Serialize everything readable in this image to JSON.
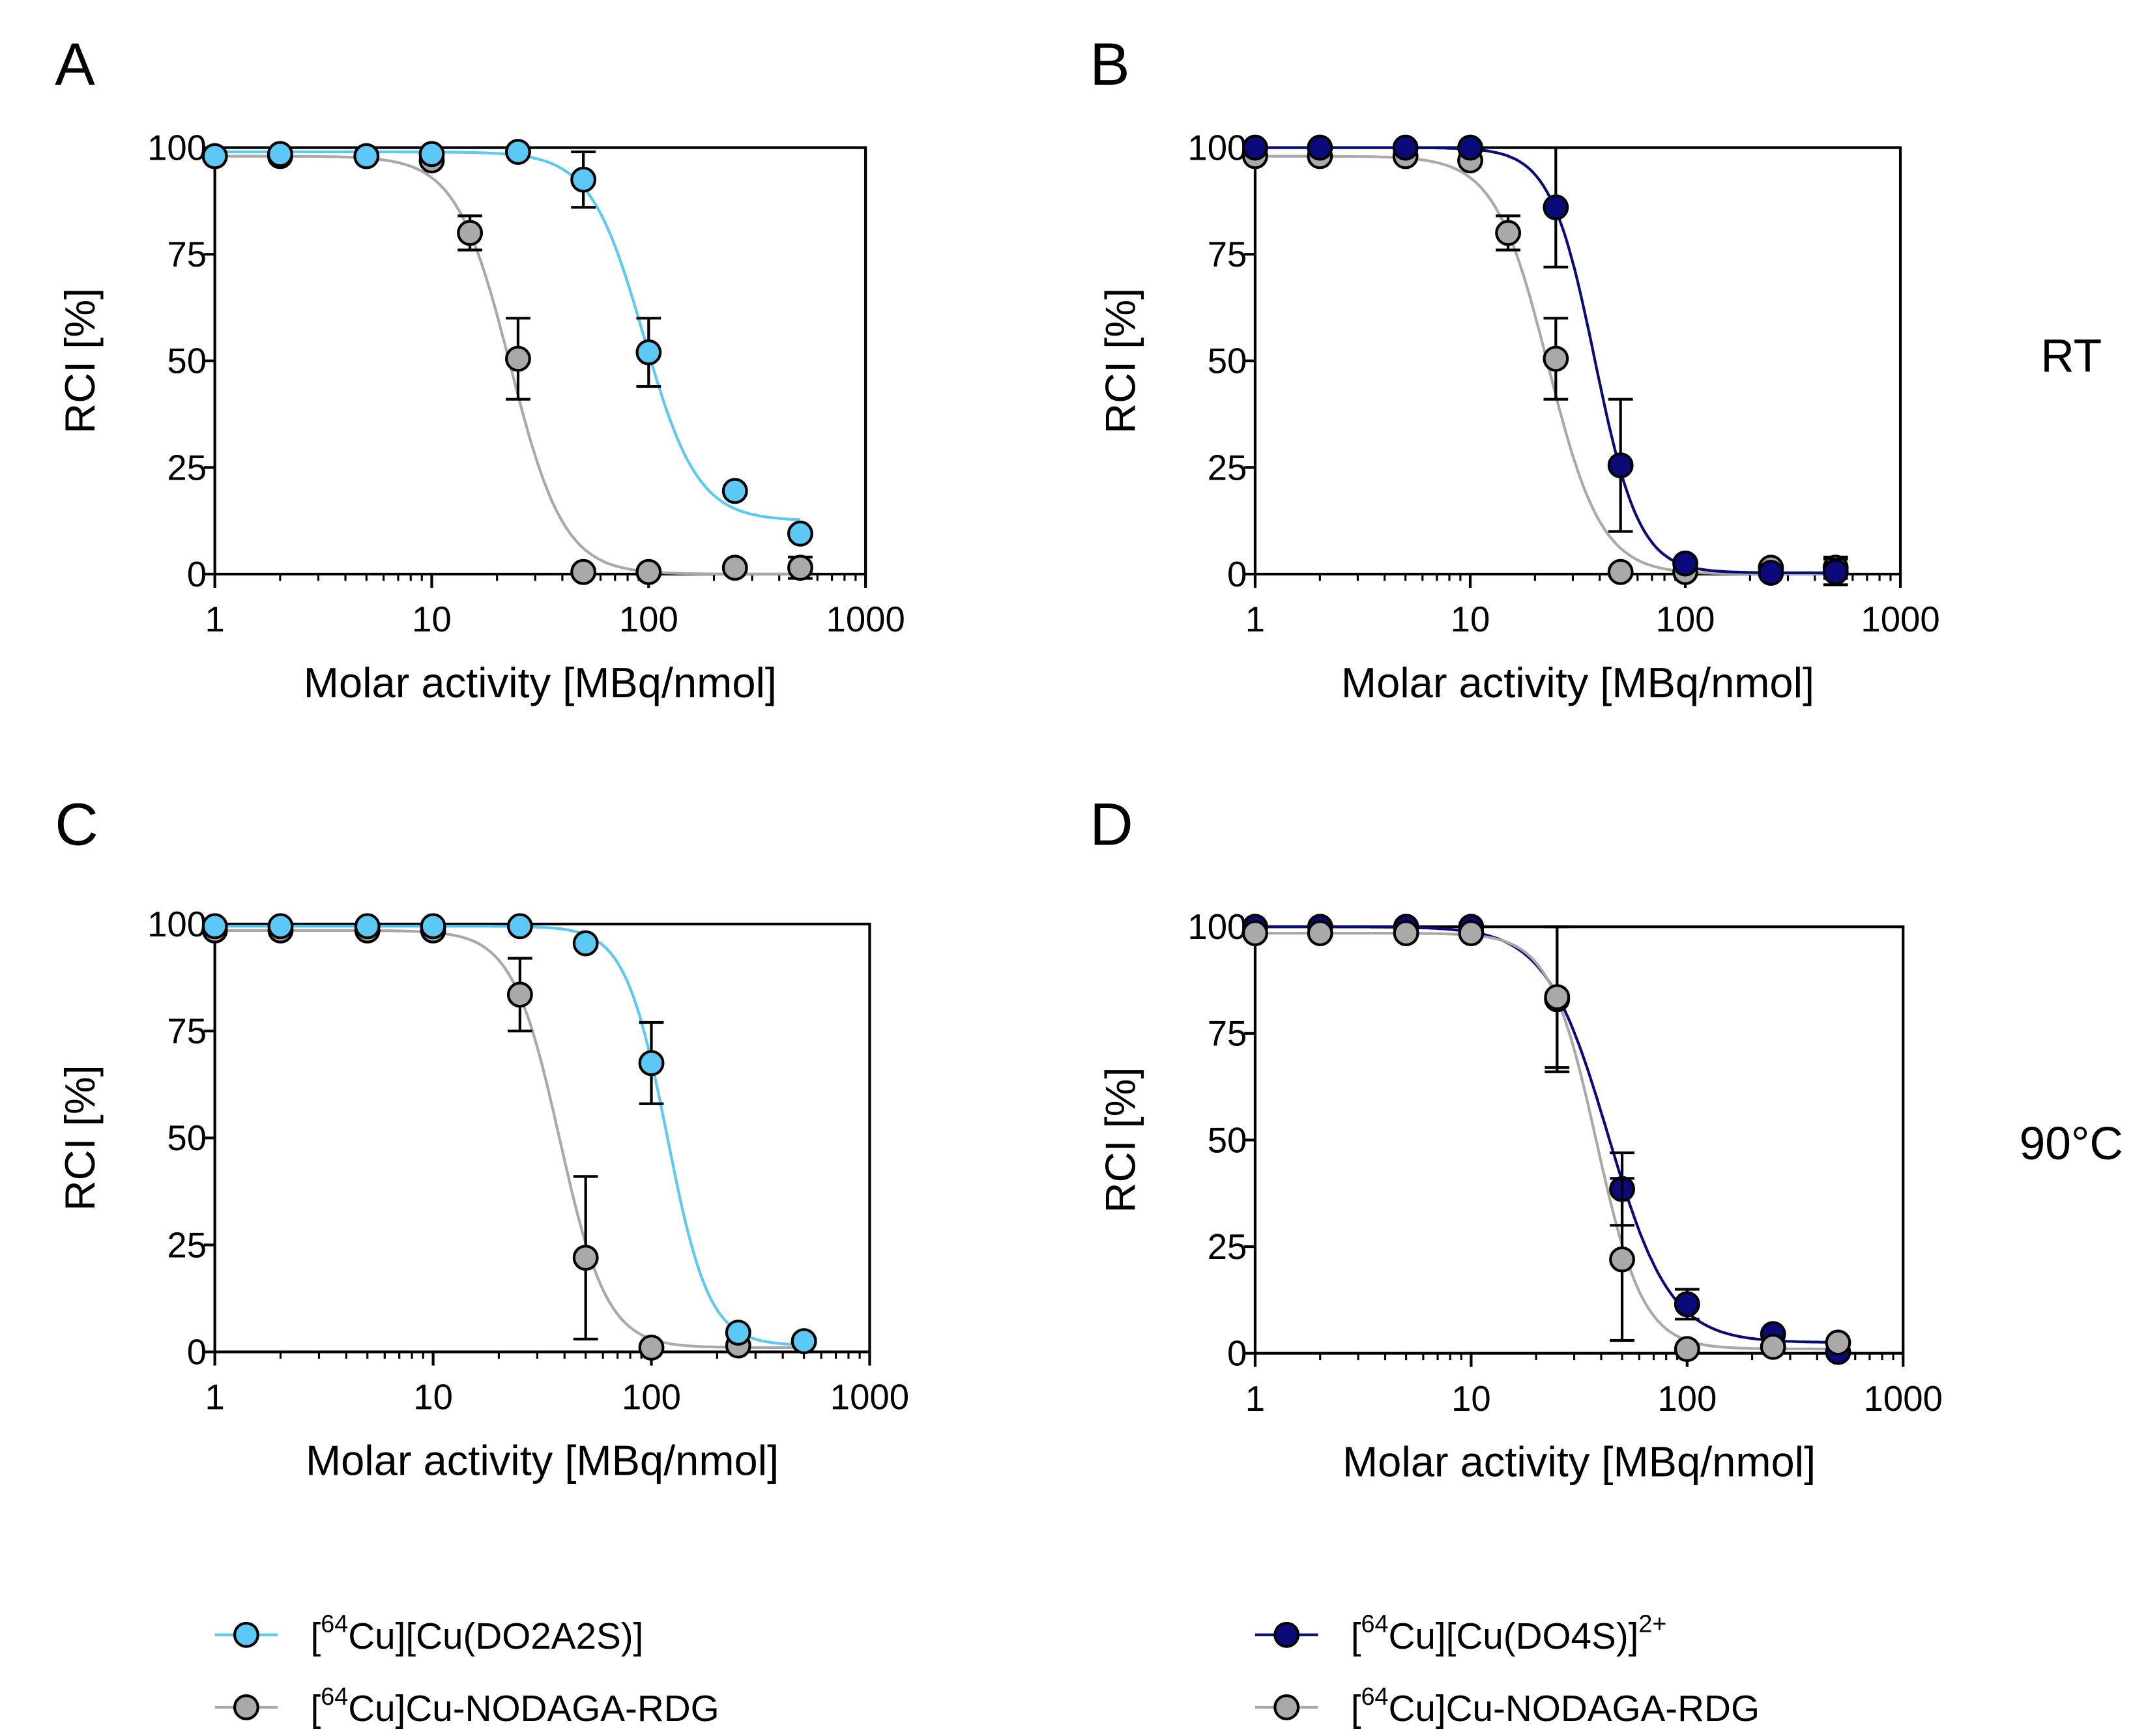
{
  "chart_data": [
    {
      "panel": "A",
      "type": "scatter",
      "xscale": "log",
      "xlim": [
        1,
        1000
      ],
      "ylim": [
        0,
        100
      ],
      "xlabel": "Molar activity [MBq/nmol]",
      "ylabel": "RCI [%]",
      "xticks": [
        "1",
        "10",
        "100",
        "1000"
      ],
      "xtick_values": [
        1,
        10,
        100,
        1000
      ],
      "yticks": [
        "0",
        "25",
        "50",
        "75",
        "100"
      ],
      "ytick_values": [
        0,
        25,
        50,
        75,
        100
      ],
      "condition": "",
      "series": [
        {
          "name": "[64Cu]Cu-NODAGA-RDG",
          "color": "#a9a9a9",
          "x": [
            1,
            2,
            5,
            10,
            15,
            25,
            50,
            100,
            250,
            500
          ],
          "y": [
            98,
            98,
            98,
            97,
            80,
            50.5,
            0.5,
            0.5,
            1.5,
            1.5
          ],
          "err": [
            null,
            null,
            null,
            null,
            4,
            9.5,
            null,
            null,
            null,
            2.5
          ],
          "fit": {
            "top": 98,
            "bottom": 0,
            "ic50": 23,
            "hill": 3.5
          }
        },
        {
          "name": "[64Cu][Cu(DO2A2S)]",
          "color": "#5bc8f5",
          "x": [
            1,
            2,
            5,
            10,
            25,
            50,
            100,
            250,
            500
          ],
          "y": [
            98,
            98.5,
            98,
            98.5,
            99,
            92.5,
            52,
            19.5,
            9.5
          ],
          "err": [
            null,
            null,
            null,
            null,
            null,
            6.5,
            8,
            null,
            null
          ],
          "fit": {
            "top": 99,
            "bottom": 12.5,
            "ic50": 95,
            "hill": 3.5
          }
        }
      ]
    },
    {
      "panel": "B",
      "type": "scatter",
      "xscale": "log",
      "xlim": [
        1,
        1000
      ],
      "ylim": [
        0,
        100
      ],
      "xlabel": "Molar activity [MBq/nmol]",
      "ylabel": "RCI [%]",
      "xticks": [
        "1",
        "10",
        "100",
        "1000"
      ],
      "xtick_values": [
        1,
        10,
        100,
        1000
      ],
      "yticks": [
        "0",
        "25",
        "50",
        "75",
        "100"
      ],
      "ytick_values": [
        0,
        25,
        50,
        75,
        100
      ],
      "condition": "RT",
      "series": [
        {
          "name": "[64Cu]Cu-NODAGA-RDG",
          "color": "#a9a9a9",
          "x": [
            1,
            2,
            5,
            10,
            15,
            25,
            50,
            100,
            250,
            500
          ],
          "y": [
            98,
            98,
            98,
            97,
            80,
            50.5,
            0.5,
            0.5,
            1.5,
            1.5
          ],
          "err": [
            null,
            null,
            null,
            null,
            4,
            9.5,
            null,
            null,
            null,
            2.5
          ],
          "fit": {
            "top": 98,
            "bottom": 0,
            "ic50": 23,
            "hill": 3.5
          }
        },
        {
          "name": "[64Cu][Cu(DO4S)]2+",
          "color": "#0a0a7a",
          "x": [
            1,
            2,
            5,
            10,
            25,
            50,
            100,
            250,
            500
          ],
          "y": [
            100,
            100,
            100,
            100,
            86,
            25.5,
            2.5,
            0.3,
            0.5
          ],
          "err": [
            null,
            null,
            null,
            null,
            14,
            15.5,
            null,
            null,
            3
          ],
          "fit": {
            "top": 100,
            "bottom": 0.3,
            "ic50": 38,
            "hill": 4.2
          }
        }
      ]
    },
    {
      "panel": "C",
      "type": "scatter",
      "xscale": "log",
      "xlim": [
        1,
        1000
      ],
      "ylim": [
        0,
        100
      ],
      "xlabel": "Molar activity [MBq/nmol]",
      "ylabel": "RCI [%]",
      "xticks": [
        "1",
        "10",
        "100",
        "1000"
      ],
      "xtick_values": [
        1,
        10,
        100,
        1000
      ],
      "yticks": [
        "0",
        "25",
        "50",
        "75",
        "100"
      ],
      "ytick_values": [
        0,
        25,
        50,
        75,
        100
      ],
      "condition": "",
      "series": [
        {
          "name": "[64Cu]Cu-NODAGA-RDG",
          "color": "#a9a9a9",
          "x": [
            1,
            2,
            5,
            10,
            25,
            50,
            100,
            250,
            500
          ],
          "y": [
            98.5,
            98.5,
            98.5,
            98.5,
            83.5,
            22,
            1,
            1.5,
            2.5
          ],
          "err": [
            null,
            null,
            null,
            null,
            8.5,
            19,
            null,
            null,
            null
          ],
          "fit": {
            "top": 98.5,
            "bottom": 1,
            "ic50": 38,
            "hill": 4
          }
        },
        {
          "name": "[64Cu][Cu(DO2A2S)]",
          "color": "#5bc8f5",
          "x": [
            1,
            2,
            5,
            10,
            25,
            50,
            100,
            250,
            500
          ],
          "y": [
            99.5,
            99.5,
            99.5,
            99.5,
            99.5,
            95.5,
            67.5,
            4.5,
            2.5
          ],
          "err": [
            null,
            null,
            null,
            null,
            null,
            null,
            9.5,
            null,
            null
          ],
          "fit": {
            "top": 99.5,
            "bottom": 1.5,
            "ic50": 118,
            "hill": 4.5
          }
        }
      ]
    },
    {
      "panel": "D",
      "type": "scatter",
      "xscale": "log",
      "xlim": [
        1,
        1000
      ],
      "ylim": [
        0,
        100
      ],
      "xlabel": "Molar activity [MBq/nmol]",
      "ylabel": "RCI [%]",
      "xticks": [
        "1",
        "10",
        "100",
        "1000"
      ],
      "xtick_values": [
        1,
        10,
        100,
        1000
      ],
      "yticks": [
        "0",
        "25",
        "50",
        "75",
        "100"
      ],
      "ytick_values": [
        0,
        25,
        50,
        75,
        100
      ],
      "condition": "90°C",
      "series": [
        {
          "name": "[64Cu][Cu(DO4S)]2+",
          "color": "#0a0a7a",
          "x": [
            1,
            2,
            5,
            10,
            25,
            50,
            100,
            250,
            500
          ],
          "y": [
            100,
            100,
            100,
            100,
            83,
            38.5,
            11.5,
            4.5,
            0.3
          ],
          "err": [
            null,
            null,
            null,
            null,
            17,
            8.5,
            3.5,
            null,
            null
          ],
          "fit": {
            "top": 100,
            "bottom": 2.5,
            "ic50": 43,
            "hill": 3
          }
        },
        {
          "name": "[64Cu]Cu-NODAGA-RDG",
          "color": "#a9a9a9",
          "x": [
            1,
            2,
            5,
            10,
            25,
            50,
            100,
            250,
            500
          ],
          "y": [
            98.5,
            98.5,
            98.5,
            98.5,
            83.5,
            22,
            1,
            1.5,
            2.5
          ],
          "err": [
            null,
            null,
            null,
            null,
            16.5,
            19,
            null,
            null,
            null
          ],
          "fit": {
            "top": 98.5,
            "bottom": 1,
            "ic50": 38,
            "hill": 4
          }
        }
      ]
    }
  ],
  "legends": [
    {
      "items": [
        {
          "pre": "[",
          "sup": "64",
          "post": "Cu][Cu(DO2A2S)]",
          "sup2": "",
          "color": "#5bc8f5"
        },
        {
          "pre": "[",
          "sup": "64",
          "post": "Cu]Cu-NODAGA-RDG",
          "sup2": "",
          "color": "#a9a9a9"
        }
      ]
    },
    {
      "items": [
        {
          "pre": "[",
          "sup": "64",
          "post": "Cu][Cu(DO4S)]",
          "sup2": "2+",
          "color": "#0a0a7a"
        },
        {
          "pre": "[",
          "sup": "64",
          "post": "Cu]Cu-NODAGA-RDG",
          "sup2": "",
          "color": "#a9a9a9"
        }
      ]
    }
  ]
}
